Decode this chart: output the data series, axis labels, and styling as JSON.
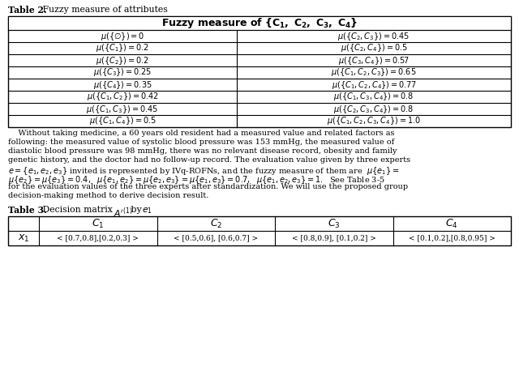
{
  "table2_title": "Table 2. Fuzzy measure of attributes",
  "table2_left": [
    "$\\mu(\\{\\emptyset\\}) = 0$",
    "$\\mu(\\{C_1\\}) = 0.2$",
    "$\\mu(\\{C_2\\}) = 0.2$",
    "$\\mu(\\{C_3\\}) = 0.25$",
    "$\\mu(\\{C_4\\}) = 0.35$",
    "$\\mu(\\{C_1,C_2\\}) = 0.42$",
    "$\\mu(\\{C_1,C_3\\}) = 0.45$",
    "$\\mu(\\{C_1,C_4\\}) = 0.5$"
  ],
  "table2_right": [
    "$\\mu(\\{C_2,C_3\\}) = 0.45$",
    "$\\mu(\\{C_2,C_4\\}) = 0.5$",
    "$\\mu(\\{C_3,C_4\\}) = 0.57$",
    "$\\mu(\\{C_1,C_2,C_3\\}) = 0.65$",
    "$\\mu(\\{C_1,C_2,C_4\\}) = 0.77$",
    "$\\mu(\\{C_1,C_3,C_4\\}) = 0.8$",
    "$\\mu(\\{C_2,C_3,C_4\\}) = 0.8$",
    "$\\mu(\\{C_1,C_2,C_3,C_4\\}) = 1.0$"
  ],
  "para_lines": [
    "    Without taking medicine, a 60 years old resident had a measured value and related factors as",
    "following: the measured value of systolic blood pressure was 153 mmHg, the measured value of",
    "diastolic blood pressure was 98 mmHg, there was no relevant disease record, obesity and family",
    "genetic history, and the doctor had no follow-up record. The evaluation value given by three experts",
    "e = {e_1, e_2, e_3} invited is represented by IVq-ROFNs, and the fuzzy measure of them are  mu{e_1} =",
    "mu{e_2} = mu{e_3} = 0.4,  mu{e_1, e_2} = mu{e_2, e_3} = mu{e_1, e_3} = 0.7,  mu{e_1, e_2, e_3} = 1.  See Table 3-5",
    "for the evaluation values of the three experts after standardization. We will use the proposed group",
    "decision-making method to derive decision result."
  ],
  "para_lines_rendered": [
    "    Without taking medicine, a 60 years old resident had a measured value and related factors as",
    "following: the measured value of systolic blood pressure was 153 mmHg, the measured value of",
    "diastolic blood pressure was 98 mmHg, there was no relevant disease record, obesity and family",
    "genetic history, and the doctor had no follow-up record. The evaluation value given by three experts"
  ],
  "para_line5": "e = {e",
  "table3_row_data": [
    "< [0.7,0.8],[0.2,0.3] >",
    "< [0.5,0.6], [0.6,0.7] >",
    "< [0.8,0.9], [0.1,0.2] >",
    "< [0.1,0.2],[0.8,0.95] >"
  ],
  "bg": "#ffffff",
  "line_color": "#000000",
  "font_size_title": 7.8,
  "font_size_table": 7.0,
  "font_size_para": 7.0,
  "font_size_t3title": 7.8,
  "font_size_t3data": 6.5
}
